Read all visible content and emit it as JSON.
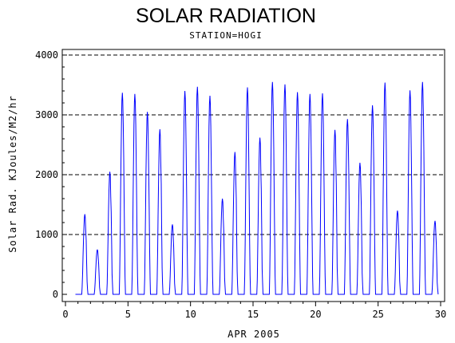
{
  "chart_data": {
    "type": "line",
    "title": "SOLAR RADIATION",
    "subtitle": "STATION=HOGI",
    "xlabel": "APR 2005",
    "ylabel": "Solar Rad. KJoules/M2/hr",
    "xlim": [
      0,
      30
    ],
    "ylim": [
      0,
      4000
    ],
    "xticks": [
      0,
      5,
      10,
      15,
      20,
      25,
      30
    ],
    "yticks": [
      0,
      1000,
      2000,
      3000,
      4000
    ],
    "grid": "horizontal dashed at 1000, 2000, 3000, 4000",
    "line_color": "#0000ff",
    "daily_peaks": [
      {
        "day": 1,
        "peak": 1340
      },
      {
        "day": 2,
        "peak": 750
      },
      {
        "day": 3,
        "peak": 2050
      },
      {
        "day": 4,
        "peak": 3370
      },
      {
        "day": 5,
        "peak": 3350
      },
      {
        "day": 6,
        "peak": 3050
      },
      {
        "day": 7,
        "peak": 2760
      },
      {
        "day": 8,
        "peak": 1170
      },
      {
        "day": 9,
        "peak": 3400
      },
      {
        "day": 10,
        "peak": 3470
      },
      {
        "day": 11,
        "peak": 3320
      },
      {
        "day": 12,
        "peak": 1600
      },
      {
        "day": 13,
        "peak": 2380
      },
      {
        "day": 14,
        "peak": 3460
      },
      {
        "day": 15,
        "peak": 2620
      },
      {
        "day": 16,
        "peak": 3550
      },
      {
        "day": 17,
        "peak": 3510
      },
      {
        "day": 18,
        "peak": 3380
      },
      {
        "day": 19,
        "peak": 3350
      },
      {
        "day": 20,
        "peak": 3360
      },
      {
        "day": 21,
        "peak": 2750
      },
      {
        "day": 22,
        "peak": 2930
      },
      {
        "day": 23,
        "peak": 2200
      },
      {
        "day": 24,
        "peak": 3160
      },
      {
        "day": 25,
        "peak": 3540
      },
      {
        "day": 26,
        "peak": 1400
      },
      {
        "day": 27,
        "peak": 3410
      },
      {
        "day": 28,
        "peak": 3550
      },
      {
        "day": 29,
        "peak": 1230
      }
    ]
  }
}
